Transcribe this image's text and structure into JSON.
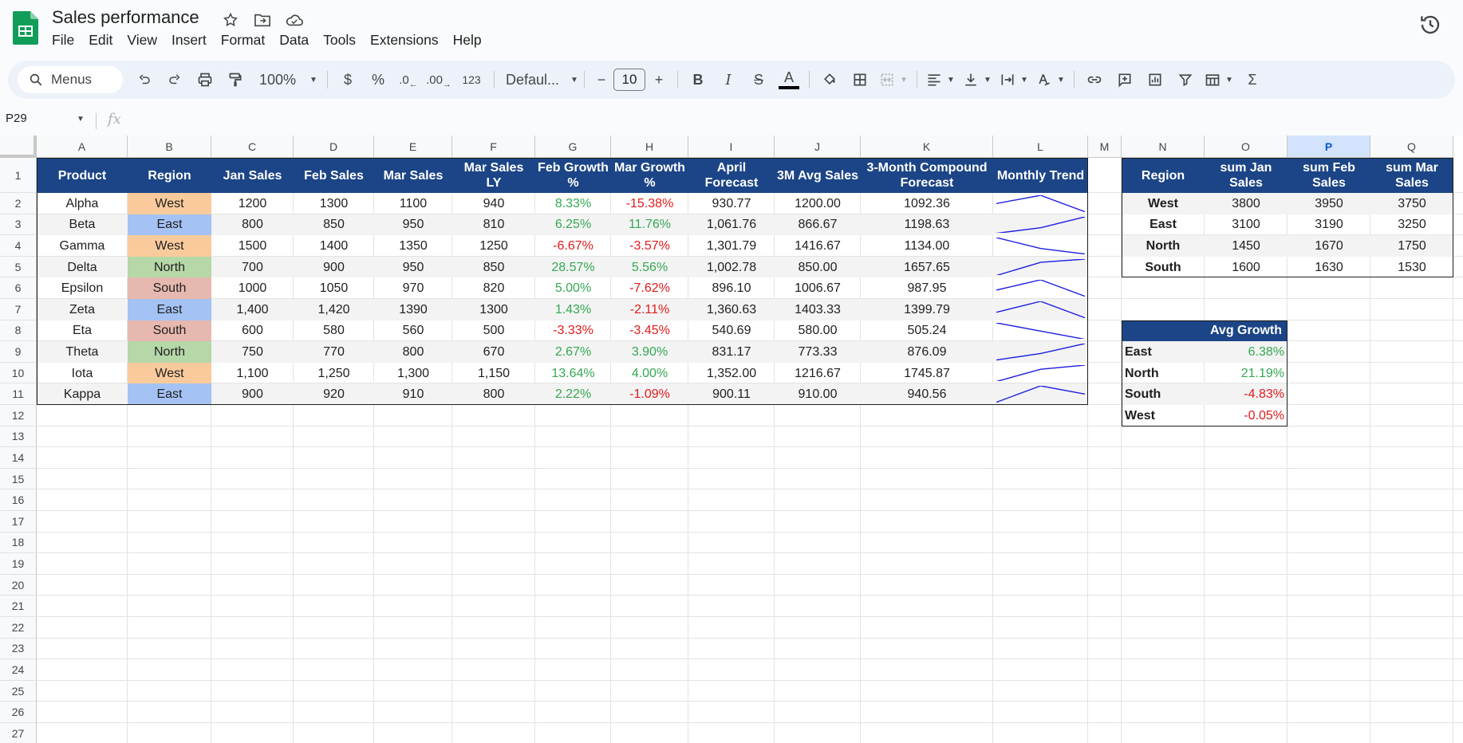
{
  "app": {
    "title": "Sales performance",
    "menu": [
      "File",
      "Edit",
      "View",
      "Insert",
      "Format",
      "Data",
      "Tools",
      "Extensions",
      "Help"
    ]
  },
  "toolbar": {
    "search_label": "Menus",
    "zoom": "100%",
    "currency": "$",
    "percent": "%",
    "dec_decrease": ".0",
    "dec_increase": ".00",
    "more_formats": "123",
    "font": "Defaul...",
    "font_size": "10",
    "minus": "−",
    "plus": "+",
    "bold": "B",
    "italic": "I",
    "strike": "S",
    "text_color_letter": "A",
    "sum": "Σ"
  },
  "formula_bar": {
    "cell_ref": "P29",
    "fx": "fx"
  },
  "columns": [
    "A",
    "B",
    "C",
    "D",
    "E",
    "F",
    "G",
    "H",
    "I",
    "J",
    "K",
    "L",
    "M",
    "N",
    "O",
    "P",
    "Q"
  ],
  "selected_column": "P",
  "rows": [
    "1",
    "2",
    "3",
    "4",
    "5",
    "6",
    "7",
    "8",
    "9",
    "10",
    "11",
    "12",
    "13",
    "14",
    "15",
    "16",
    "17",
    "18",
    "19",
    "20",
    "21",
    "22",
    "23",
    "24",
    "25",
    "26",
    "27"
  ],
  "main_table": {
    "headers": [
      "Product",
      "Region",
      "Jan Sales",
      "Feb Sales",
      "Mar Sales",
      "Mar Sales LY",
      "Feb Growth %",
      "Mar Growth %",
      "April Forecast",
      "3M Avg Sales",
      "3-Month Compound Forecast",
      "Monthly Trend"
    ],
    "rows": [
      [
        "Alpha",
        "West",
        "1200",
        "1300",
        "1100",
        "940",
        "8.33%",
        "-15.38%",
        "930.77",
        "1200.00",
        "1092.36"
      ],
      [
        "Beta",
        "East",
        "800",
        "850",
        "950",
        "810",
        "6.25%",
        "11.76%",
        "1,061.76",
        "866.67",
        "1198.63"
      ],
      [
        "Gamma",
        "West",
        "1500",
        "1400",
        "1350",
        "1250",
        "-6.67%",
        "-3.57%",
        "1,301.79",
        "1416.67",
        "1134.00"
      ],
      [
        "Delta",
        "North",
        "700",
        "900",
        "950",
        "850",
        "28.57%",
        "5.56%",
        "1,002.78",
        "850.00",
        "1657.65"
      ],
      [
        "Epsilon",
        "South",
        "1000",
        "1050",
        "970",
        "820",
        "5.00%",
        "-7.62%",
        "896.10",
        "1006.67",
        "987.95"
      ],
      [
        "Zeta",
        "East",
        "1,400",
        "1,420",
        "1390",
        "1300",
        "1.43%",
        "-2.11%",
        "1,360.63",
        "1403.33",
        "1399.79"
      ],
      [
        "Eta",
        "South",
        "600",
        "580",
        "560",
        "500",
        "-3.33%",
        "-3.45%",
        "540.69",
        "580.00",
        "505.24"
      ],
      [
        "Theta",
        "North",
        "750",
        "770",
        "800",
        "670",
        "2.67%",
        "3.90%",
        "831.17",
        "773.33",
        "876.09"
      ],
      [
        "Iota",
        "West",
        "1,100",
        "1,250",
        "1,300",
        "1,150",
        "13.64%",
        "4.00%",
        "1,352.00",
        "1216.67",
        "1745.87"
      ],
      [
        "Kappa",
        "East",
        "900",
        "920",
        "910",
        "800",
        "2.22%",
        "-1.09%",
        "900.11",
        "910.00",
        "940.56"
      ]
    ],
    "trend_values": [
      [
        1200,
        1300,
        1100
      ],
      [
        800,
        850,
        950
      ],
      [
        1500,
        1400,
        1350
      ],
      [
        700,
        900,
        950
      ],
      [
        1000,
        1050,
        970
      ],
      [
        1400,
        1420,
        1390
      ],
      [
        600,
        580,
        560
      ],
      [
        750,
        770,
        800
      ],
      [
        1100,
        1250,
        1300
      ],
      [
        900,
        920,
        910
      ]
    ]
  },
  "region_colors": {
    "West": "#f9cb9c",
    "East": "#a4c2f4",
    "North": "#b6d7a8",
    "South": "#e6b8af"
  },
  "colors": {
    "header_bg": "#1c4587",
    "positive": "#34a853",
    "negative": "#e01b1b",
    "sparkline": "#1f1fe0"
  },
  "pivot": {
    "headers": [
      "Region",
      "sum Jan Sales",
      "sum Feb Sales",
      "sum Mar Sales"
    ],
    "rows": [
      [
        "West",
        "3800",
        "3950",
        "3750"
      ],
      [
        "East",
        "3100",
        "3190",
        "3250"
      ],
      [
        "North",
        "1450",
        "1670",
        "1750"
      ],
      [
        "South",
        "1600",
        "1630",
        "1530"
      ]
    ]
  },
  "avg_growth": {
    "header": "Avg Growth",
    "rows": [
      [
        "East",
        "6.38%"
      ],
      [
        "North",
        "21.19%"
      ],
      [
        "South",
        "-4.83%"
      ],
      [
        "West",
        "-0.05%"
      ]
    ]
  }
}
